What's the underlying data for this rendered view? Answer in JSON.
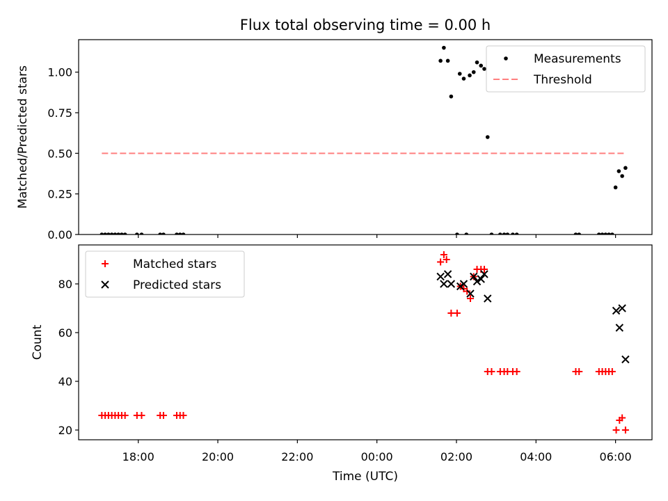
{
  "chart_data": [
    {
      "type": "scatter",
      "title": "Flux total observing time = 0.00 h",
      "xlabel": "",
      "ylabel": "Matched/Predicted stars",
      "ylim": [
        0,
        1.2
      ],
      "yticks": [
        "0.00",
        "0.25",
        "0.50",
        "0.75",
        "1.00"
      ],
      "xlim": [
        "16:30",
        "06:55"
      ],
      "x_tick_labels": [],
      "legend": {
        "placement": "top-right",
        "entries": [
          "Measurements",
          "Threshold"
        ]
      },
      "series": [
        {
          "name": "Measurements",
          "marker": "dot",
          "color": "#000000",
          "points": [
            [
              "17:05",
              0
            ],
            [
              "17:10",
              0
            ],
            [
              "17:15",
              0
            ],
            [
              "17:20",
              0
            ],
            [
              "17:25",
              0
            ],
            [
              "17:30",
              0
            ],
            [
              "17:35",
              0
            ],
            [
              "17:40",
              0
            ],
            [
              "17:58",
              0
            ],
            [
              "18:05",
              0
            ],
            [
              "18:33",
              0
            ],
            [
              "18:38",
              0
            ],
            [
              "18:58",
              0
            ],
            [
              "19:03",
              0
            ],
            [
              "19:08",
              0
            ],
            [
              "01:36",
              1.07
            ],
            [
              "01:41",
              1.15
            ],
            [
              "01:47",
              1.07
            ],
            [
              "01:52",
              0.85
            ],
            [
              "02:01",
              0
            ],
            [
              "02:05",
              0.99
            ],
            [
              "02:11",
              0.96
            ],
            [
              "02:15",
              0
            ],
            [
              "02:20",
              0.98
            ],
            [
              "02:26",
              1.0
            ],
            [
              "02:31",
              1.06
            ],
            [
              "02:37",
              1.04
            ],
            [
              "02:42",
              1.02
            ],
            [
              "02:47",
              0.6
            ],
            [
              "02:53",
              0
            ],
            [
              "03:06",
              0
            ],
            [
              "03:12",
              0
            ],
            [
              "03:17",
              0
            ],
            [
              "03:25",
              0
            ],
            [
              "03:31",
              0
            ],
            [
              "05:00",
              0
            ],
            [
              "05:05",
              0
            ],
            [
              "05:35",
              0
            ],
            [
              "05:40",
              0
            ],
            [
              "05:45",
              0
            ],
            [
              "05:50",
              0
            ],
            [
              "05:55",
              0
            ],
            [
              "06:00",
              0.29
            ],
            [
              "06:05",
              0.39
            ],
            [
              "06:10",
              0.36
            ],
            [
              "06:15",
              0.41
            ]
          ]
        },
        {
          "name": "Threshold",
          "line": "dashed",
          "color": "#ff7f7f",
          "points": [
            [
              "17:05",
              0.5
            ],
            [
              "06:15",
              0.5
            ]
          ]
        }
      ]
    },
    {
      "type": "scatter",
      "title": "",
      "xlabel": "Time (UTC)",
      "ylabel": "Count",
      "ylim": [
        16,
        96
      ],
      "yticks": [
        "20",
        "40",
        "60",
        "80"
      ],
      "xlim": [
        "16:30",
        "06:55"
      ],
      "x_tick_labels": [
        "18:00",
        "20:00",
        "22:00",
        "00:00",
        "02:00",
        "04:00",
        "06:00"
      ],
      "legend": {
        "placement": "top-left",
        "entries": [
          "Matched stars",
          "Predicted stars"
        ]
      },
      "series": [
        {
          "name": "Matched stars",
          "marker": "plus",
          "color": "#ff0000",
          "points": [
            [
              "17:05",
              26
            ],
            [
              "17:10",
              26
            ],
            [
              "17:15",
              26
            ],
            [
              "17:20",
              26
            ],
            [
              "17:25",
              26
            ],
            [
              "17:30",
              26
            ],
            [
              "17:35",
              26
            ],
            [
              "17:40",
              26
            ],
            [
              "17:58",
              26
            ],
            [
              "18:05",
              26
            ],
            [
              "18:33",
              26
            ],
            [
              "18:38",
              26
            ],
            [
              "18:58",
              26
            ],
            [
              "19:03",
              26
            ],
            [
              "19:08",
              26
            ],
            [
              "01:36",
              89
            ],
            [
              "01:41",
              92
            ],
            [
              "01:45",
              90
            ],
            [
              "01:52",
              68
            ],
            [
              "02:01",
              68
            ],
            [
              "02:06",
              79
            ],
            [
              "02:11",
              78
            ],
            [
              "02:16",
              77
            ],
            [
              "02:21",
              74
            ],
            [
              "02:26",
              83
            ],
            [
              "02:31",
              86
            ],
            [
              "02:37",
              86
            ],
            [
              "02:42",
              86
            ],
            [
              "02:47",
              44
            ],
            [
              "02:53",
              44
            ],
            [
              "03:06",
              44
            ],
            [
              "03:12",
              44
            ],
            [
              "03:17",
              44
            ],
            [
              "03:25",
              44
            ],
            [
              "03:31",
              44
            ],
            [
              "05:00",
              44
            ],
            [
              "05:05",
              44
            ],
            [
              "05:35",
              44
            ],
            [
              "05:40",
              44
            ],
            [
              "05:45",
              44
            ],
            [
              "05:50",
              44
            ],
            [
              "05:55",
              44
            ],
            [
              "06:01",
              20
            ],
            [
              "06:06",
              24
            ],
            [
              "06:10",
              25
            ],
            [
              "06:15",
              20
            ]
          ]
        },
        {
          "name": "Predicted stars",
          "marker": "x",
          "color": "#000000",
          "points": [
            [
              "01:36",
              83
            ],
            [
              "01:41",
              80
            ],
            [
              "01:47",
              84
            ],
            [
              "01:52",
              80
            ],
            [
              "02:06",
              79
            ],
            [
              "02:11",
              80
            ],
            [
              "02:21",
              76
            ],
            [
              "02:26",
              83
            ],
            [
              "02:31",
              81
            ],
            [
              "02:37",
              82
            ],
            [
              "02:42",
              84
            ],
            [
              "02:47",
              74
            ],
            [
              "06:01",
              69
            ],
            [
              "06:06",
              62
            ],
            [
              "06:10",
              70
            ],
            [
              "06:15",
              49
            ]
          ]
        }
      ]
    }
  ]
}
